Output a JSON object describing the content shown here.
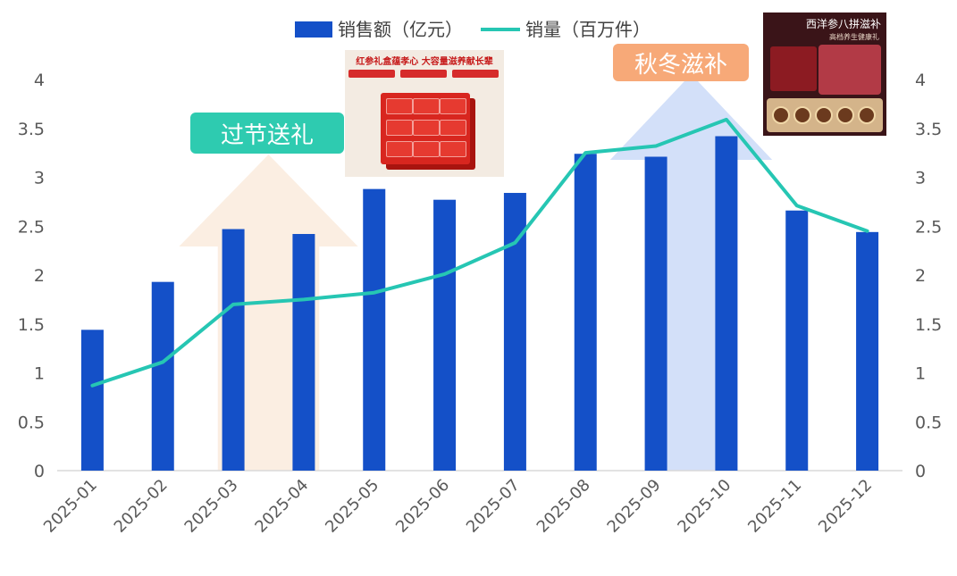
{
  "chart_data": {
    "type": "bar",
    "categories": [
      "2025-01",
      "2025-02",
      "2025-03",
      "2025-04",
      "2025-05",
      "2025-06",
      "2025-07",
      "2025-08",
      "2025-09",
      "2025-10",
      "2025-11",
      "2025-12"
    ],
    "series": [
      {
        "name": "销售额（亿元）",
        "type": "bar",
        "axis": "left",
        "color": "#1450c8",
        "values": [
          1.44,
          1.93,
          2.47,
          2.42,
          2.88,
          2.77,
          2.84,
          3.24,
          3.21,
          3.42,
          2.66,
          2.44
        ]
      },
      {
        "name": "销量（百万件）",
        "type": "line",
        "axis": "right",
        "color": "#26c6b3",
        "values": [
          0.87,
          1.11,
          1.7,
          1.75,
          1.82,
          2.01,
          2.33,
          3.25,
          3.32,
          3.59,
          2.71,
          2.45
        ]
      }
    ],
    "ylim": [
      0,
      4
    ],
    "y2lim": [
      0,
      4
    ],
    "yticks": [
      "0",
      "0.5",
      "1",
      "1.5",
      "2",
      "2.5",
      "3",
      "3.5",
      "4"
    ],
    "legend_position": "top",
    "grid": false,
    "annotations": [
      {
        "label": "过节送礼",
        "color": "#2ecbb0",
        "arrow_color": "#fbeee2",
        "span": [
          "2025-03",
          "2025-04"
        ]
      },
      {
        "label": "秋冬滋补",
        "color": "#f7a978",
        "arrow_color": "#d3e0f9",
        "span": [
          "2025-09",
          "2025-10"
        ]
      }
    ]
  },
  "images": {
    "promo1": {
      "headline": "红参礼盒蕴孝心 大容量滋养献长辈",
      "icon": "red-ginseng-gift-box-photo"
    },
    "promo2": {
      "title": "西洋参八拼滋补",
      "subtitle": "高档养生健康礼",
      "icon": "ginseng-gift-set-photo"
    }
  }
}
